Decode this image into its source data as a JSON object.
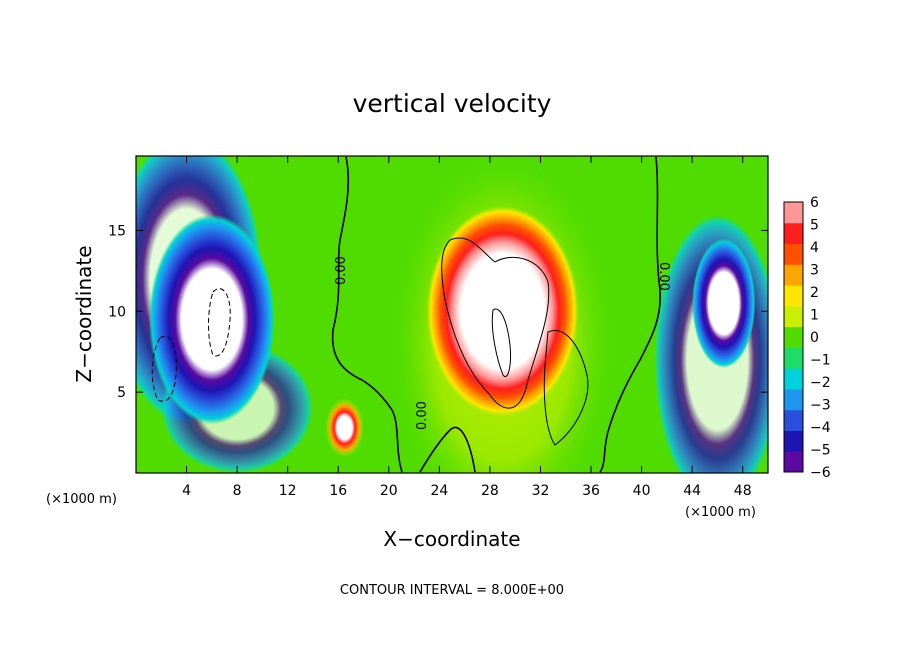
{
  "chart_data": {
    "type": "heatmap",
    "title": "vertical velocity",
    "xlabel": "X−coordinate",
    "ylabel": "Z−coordinate",
    "x_unit": "(×1000 m)",
    "footnote": "CONTOUR INTERVAL = 8.000E+00",
    "xlim": [
      0,
      50
    ],
    "ylim": [
      0,
      19.6
    ],
    "x_ticks": [
      4,
      8,
      12,
      16,
      20,
      24,
      28,
      32,
      36,
      40,
      44,
      48
    ],
    "y_ticks": [
      5,
      10,
      15
    ],
    "colorbar": {
      "levels": [
        6,
        5,
        4,
        3,
        2,
        1,
        0,
        "−1",
        "−2",
        "−3",
        "−4",
        "−5",
        "−6"
      ],
      "range": [
        -6,
        6
      ],
      "colors": [
        "#5a0aa0",
        "#1e14b4",
        "#2850dc",
        "#1e96f0",
        "#00d2dc",
        "#1edc64",
        "#50dc00",
        "#c8f000",
        "#ffe600",
        "#ffa500",
        "#ff5000",
        "#ff1e1e",
        "#ff9696"
      ]
    },
    "contour_labels": [
      "0.00",
      "0.00",
      "0.00"
    ],
    "features": [
      {
        "kind": "updraft",
        "x_center": 29,
        "z_center": 10,
        "x_radius": 6,
        "z_radius": 6.5,
        "peak": 8
      },
      {
        "kind": "updraft",
        "x_center": 16.5,
        "z_center": 2.8,
        "x_radius": 1.5,
        "z_radius": 1.8,
        "peak": 6
      },
      {
        "kind": "downdraft",
        "x_center": 6,
        "z_center": 9.5,
        "x_radius": 5,
        "z_radius": 6.5,
        "peak": -8
      },
      {
        "kind": "downdraft",
        "x_center": 46.5,
        "z_center": 10.5,
        "x_radius": 2.5,
        "z_radius": 4,
        "peak": -7
      }
    ]
  }
}
